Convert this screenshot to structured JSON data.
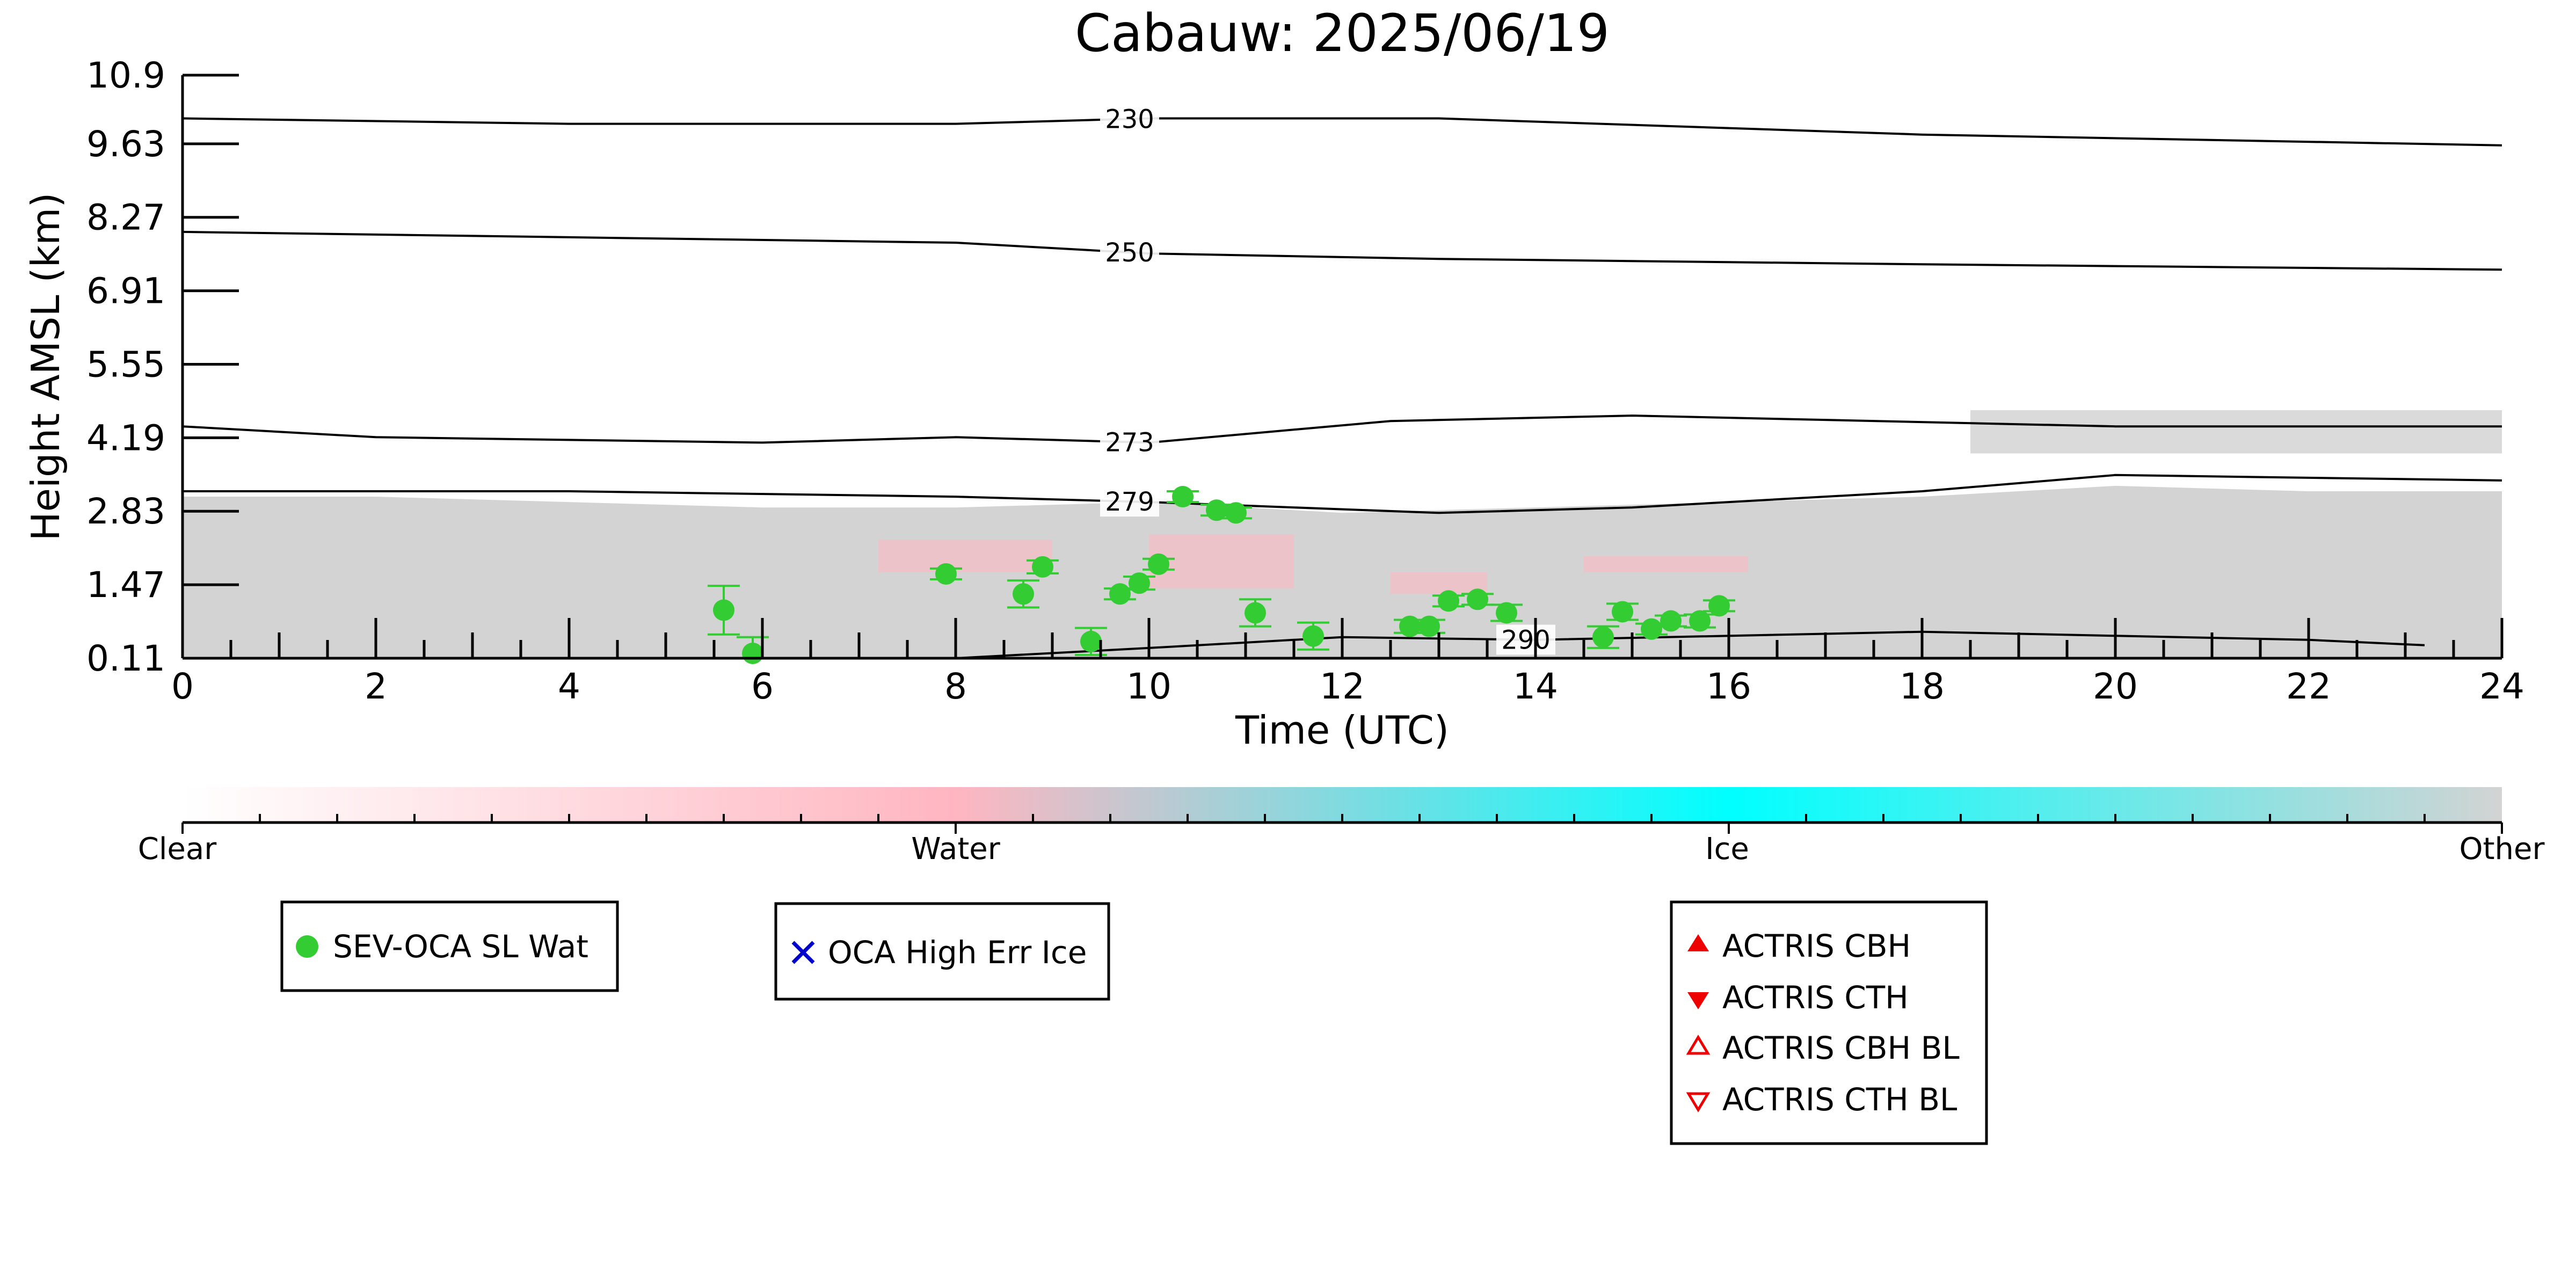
{
  "chart_data": {
    "type": "scatter",
    "title": "Cabauw: 2025/06/19",
    "xlabel": "Time (UTC)",
    "ylabel": "Height AMSL (km)",
    "xlim": [
      0,
      24
    ],
    "ylim": [
      0.11,
      10.9
    ],
    "x_ticks": [
      "0",
      "2",
      "4",
      "6",
      "8",
      "10",
      "12",
      "14",
      "16",
      "18",
      "20",
      "22",
      "24"
    ],
    "y_ticks": [
      "0.11",
      "1.47",
      "2.83",
      "4.19",
      "5.55",
      "6.91",
      "8.27",
      "9.63",
      "10.9"
    ],
    "y_tick_values": [
      0.11,
      1.47,
      2.83,
      4.19,
      5.55,
      6.91,
      8.27,
      9.63,
      10.9
    ],
    "grid": false,
    "background_field": {
      "description_color_other": "#d3d3d3",
      "gray_layer": {
        "x": [
          0,
          24
        ],
        "ymax": [
          3.1,
          3.1,
          3.0,
          2.9,
          2.9,
          3.0,
          2.8,
          2.9,
          3.0,
          3.1,
          3.3,
          3.2,
          3.2
        ]
      },
      "upper_gray_layer": {
        "x": [
          18.5,
          24
        ],
        "y": [
          3.9,
          4.7
        ]
      },
      "pink_patches": [
        {
          "x": [
            7.2,
            9.0
          ],
          "y": [
            1.7,
            2.3
          ]
        },
        {
          "x": [
            10.0,
            11.5
          ],
          "y": [
            1.4,
            2.4
          ]
        },
        {
          "x": [
            12.5,
            13.5
          ],
          "y": [
            1.3,
            1.7
          ]
        },
        {
          "x": [
            14.5,
            16.2
          ],
          "y": [
            1.7,
            2.0
          ]
        }
      ]
    },
    "contours": [
      {
        "level": "230",
        "x": [
          0,
          4,
          8,
          10,
          13,
          18,
          24
        ],
        "y": [
          10.1,
          10.0,
          10.0,
          10.1,
          10.1,
          9.8,
          9.6
        ],
        "label_x": 9.8
      },
      {
        "level": "250",
        "x": [
          0,
          4,
          8,
          10,
          13,
          18,
          24
        ],
        "y": [
          8.0,
          7.9,
          7.8,
          7.6,
          7.5,
          7.4,
          7.3
        ],
        "label_x": 9.8
      },
      {
        "level": "273",
        "x": [
          0,
          2,
          6,
          8,
          10,
          12.5,
          15,
          20,
          24
        ],
        "y": [
          4.4,
          4.2,
          4.1,
          4.2,
          4.1,
          4.5,
          4.6,
          4.4,
          4.4
        ],
        "label_x": 9.8
      },
      {
        "level": "279",
        "x": [
          0,
          4,
          8,
          10,
          13,
          15,
          18,
          20,
          24
        ],
        "y": [
          3.2,
          3.2,
          3.1,
          3.0,
          2.8,
          2.9,
          3.2,
          3.5,
          3.4
        ],
        "label_x": 9.8
      },
      {
        "level": "290",
        "x": [
          8,
          10,
          12,
          14,
          18,
          22,
          23.2
        ],
        "y": [
          0.11,
          0.3,
          0.5,
          0.45,
          0.6,
          0.45,
          0.35
        ],
        "label_x": 13.9
      }
    ],
    "series": [
      {
        "name": "SEV-OCA SL Wat",
        "color": "#33cc33",
        "marker": "circle",
        "x": [
          5.6,
          5.9,
          7.9,
          8.7,
          8.9,
          9.4,
          9.7,
          9.9,
          10.1,
          10.35,
          10.7,
          10.9,
          11.1,
          11.7,
          12.7,
          12.9,
          13.1,
          13.4,
          13.7,
          14.7,
          14.9,
          15.2,
          15.4,
          15.7,
          15.9
        ],
        "y": [
          1.0,
          0.2,
          1.67,
          1.3,
          1.8,
          0.42,
          1.3,
          1.5,
          1.85,
          3.1,
          2.85,
          2.8,
          0.95,
          0.52,
          0.7,
          0.7,
          1.17,
          1.2,
          0.95,
          0.5,
          0.97,
          0.65,
          0.8,
          0.8,
          1.08
        ],
        "yerr": [
          0.45,
          0.3,
          0.1,
          0.25,
          0.12,
          0.25,
          0.1,
          0.12,
          0.1,
          0.1,
          0.1,
          0.1,
          0.25,
          0.25,
          0.12,
          0.12,
          0.1,
          0.1,
          0.15,
          0.2,
          0.15,
          0.1,
          0.1,
          0.12,
          0.1
        ]
      },
      {
        "name": "OCA High Err Ice",
        "color": "#0000cc",
        "marker": "x",
        "x": [],
        "y": []
      },
      {
        "name": "ACTRIS CBH",
        "color": "#ee0000",
        "marker": "triangle-up",
        "x": [],
        "y": []
      },
      {
        "name": "ACTRIS CTH",
        "color": "#ee0000",
        "marker": "triangle-down",
        "x": [],
        "y": []
      },
      {
        "name": "ACTRIS CBH BL",
        "color": "#ee0000",
        "marker": "triangle-up-open",
        "x": [],
        "y": []
      },
      {
        "name": "ACTRIS CTH BL",
        "color": "#ee0000",
        "marker": "triangle-down-open",
        "x": [],
        "y": []
      }
    ]
  },
  "colorbar": {
    "labels": [
      "Clear",
      "Water",
      "Ice",
      "Other"
    ],
    "colors": [
      "#ffffff",
      "#ffb6c1",
      "#00ffff",
      "#d3d3d3"
    ]
  },
  "legends": {
    "box1": [
      "SEV-OCA SL Wat"
    ],
    "box2": [
      "OCA High Err Ice"
    ],
    "box3": [
      "ACTRIS CBH",
      "ACTRIS CTH",
      "ACTRIS CBH BL",
      "ACTRIS CTH BL"
    ]
  }
}
